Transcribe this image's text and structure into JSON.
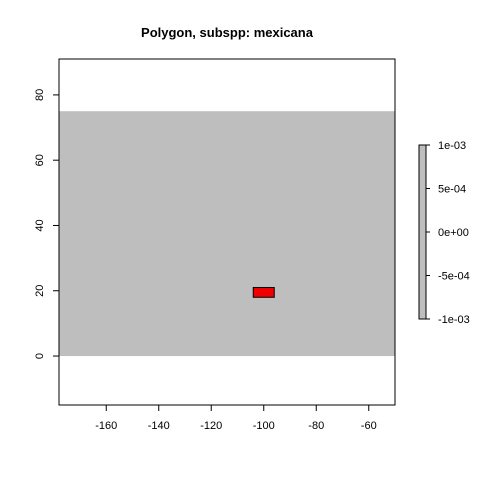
{
  "title": "Polygon, subspp: mexicana",
  "colors": {
    "raster_fill": "#bebebe",
    "polygon_fill": "#ee0000",
    "polygon_stroke": "#000000",
    "axis": "#000000",
    "legend_bar": "#bebebe"
  },
  "chart_data": {
    "type": "map",
    "title": "Polygon, subspp: mexicana",
    "xlim": [
      -178,
      -50
    ],
    "ylim": [
      -15,
      91
    ],
    "x_ticks": [
      -160,
      -140,
      -120,
      -100,
      -80,
      -60
    ],
    "x_tick_labels": [
      "-160",
      "-140",
      "-120",
      "-100",
      "-80",
      "-60"
    ],
    "y_ticks": [
      0,
      20,
      40,
      60,
      80
    ],
    "y_tick_labels": [
      "0",
      "20",
      "40",
      "60",
      "80"
    ],
    "raster_extent": {
      "xmin": -178,
      "xmax": -50,
      "ymin": 0,
      "ymax": 75
    },
    "polygon": {
      "xmin": -104,
      "xmax": -96,
      "ymin": 18,
      "ymax": 21
    },
    "legend": {
      "position": "right",
      "range": [
        -0.001,
        0.001
      ],
      "ticks": [
        0.001,
        0.0005,
        0,
        -0.0005,
        -0.001
      ],
      "tick_labels": [
        "1e-03",
        "5e-04",
        "0e+00",
        "-5e-04",
        "-1e-03"
      ]
    }
  }
}
